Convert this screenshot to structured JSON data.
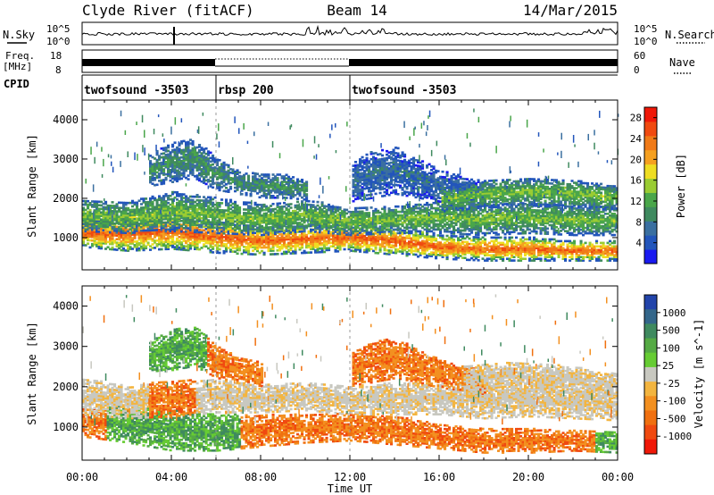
{
  "header": {
    "station": "Clyde River (fitACF)",
    "beam": "Beam 14",
    "date": "14/Mar/2015"
  },
  "strips": {
    "nsky": {
      "label": "N.Sky",
      "tick_top": "10^5",
      "tick_bottom": "10^0"
    },
    "nsearch": {
      "label": "N.Search",
      "tick_top": "10^5",
      "tick_bottom": "10^0"
    },
    "freq": {
      "label_line1": "Freq.",
      "label_line2": "[MHz]",
      "tick_top": "18",
      "tick_bottom": "8"
    },
    "nave": {
      "label": "Nave",
      "tick_top": "60",
      "tick_bottom": "0"
    },
    "cpid": {
      "label": "CPID"
    }
  },
  "colors": {
    "power": [
      "#1a1af0",
      "#2255bb",
      "#3a6fa0",
      "#3f8a5f",
      "#4aa64a",
      "#9acc33",
      "#eedd22",
      "#f5a020",
      "#f07a18",
      "#f04a10",
      "#f01808"
    ],
    "velocity": [
      "#2244aa",
      "#33668a",
      "#3f8a5f",
      "#55aa44",
      "#66cc33",
      "#c8c8c0",
      "#f3b540",
      "#f39020",
      "#f07010",
      "#f04a10",
      "#f01808"
    ]
  },
  "chart_data": [
    {
      "type": "table",
      "name": "CPID",
      "segments": [
        {
          "start_hour": 0,
          "end_hour": 6,
          "label": "twofsound -3503"
        },
        {
          "start_hour": 6,
          "end_hour": 12,
          "label": "rbsp 200"
        },
        {
          "start_hour": 12,
          "end_hour": 24,
          "label": "twofsound -3503"
        }
      ]
    },
    {
      "type": "heatmap",
      "name": "power",
      "xlabel": "Time UT",
      "ylabel": "Slant Range [km]",
      "xlim": [
        0,
        24
      ],
      "ylim": [
        180,
        4500
      ],
      "x_ticks": [
        "00:00",
        "04:00",
        "08:00",
        "12:00",
        "16:00",
        "20:00",
        "00:00"
      ],
      "y_ticks": [
        1000,
        2000,
        3000,
        4000
      ],
      "colorbar": {
        "label": "Power [dB]",
        "ticks": [
          4,
          8,
          12,
          16,
          20,
          24,
          28
        ],
        "range": [
          0,
          30
        ]
      },
      "bands": [
        {
          "hours": [
            0,
            2,
            4,
            6,
            8,
            10,
            12,
            14,
            16,
            18,
            20,
            22,
            24
          ],
          "center_km": [
            1100,
            1050,
            1150,
            1000,
            900,
            950,
            1000,
            900,
            750,
            700,
            700,
            650,
            650
          ],
          "width_km": [
            350,
            400,
            450,
            400,
            350,
            350,
            350,
            350,
            300,
            300,
            300,
            250,
            250
          ],
          "level": 26
        },
        {
          "hours": [
            0,
            2,
            4,
            6,
            8,
            10,
            12,
            14,
            16,
            18,
            20,
            22,
            24
          ],
          "center_km": [
            1550,
            1500,
            1650,
            1550,
            1450,
            1550,
            1400,
            1450,
            1500,
            1450,
            1500,
            1450,
            1400
          ],
          "width_km": [
            400,
            400,
            500,
            450,
            400,
            400,
            350,
            350,
            400,
            400,
            400,
            400,
            350
          ],
          "level": 14
        },
        {
          "hours": [
            3,
            4,
            5,
            6,
            7,
            8,
            9,
            10
          ],
          "center_km": [
            2700,
            2900,
            3000,
            2600,
            2400,
            2300,
            2300,
            2200
          ],
          "width_km": [
            400,
            500,
            500,
            400,
            300,
            300,
            300,
            250
          ],
          "level": 10
        },
        {
          "hours": [
            12,
            13,
            14,
            15,
            16,
            17,
            18
          ],
          "center_km": [
            2400,
            2600,
            2700,
            2500,
            2300,
            2200,
            2100
          ],
          "width_km": [
            500,
            600,
            600,
            500,
            400,
            350,
            300
          ],
          "level": 6
        },
        {
          "hours": [
            16,
            18,
            20,
            22,
            24
          ],
          "center_km": [
            1950,
            2100,
            2150,
            2100,
            2000
          ],
          "width_km": [
            300,
            350,
            350,
            350,
            300
          ],
          "level": 14
        }
      ]
    },
    {
      "type": "heatmap",
      "name": "velocity",
      "xlabel": "Time UT",
      "ylabel": "Slant Range [km]",
      "xlim": [
        0,
        24
      ],
      "ylim": [
        180,
        4500
      ],
      "x_ticks": [
        "00:00",
        "04:00",
        "08:00",
        "12:00",
        "16:00",
        "20:00",
        "00:00"
      ],
      "y_ticks": [
        1000,
        2000,
        3000,
        4000
      ],
      "colorbar": {
        "label": "Velocity [m s^-1]",
        "ticks": [
          "1000",
          "500",
          "100",
          "25",
          "-25",
          "-100",
          "-500",
          "-1000"
        ]
      },
      "bands": [
        {
          "hours": [
            0,
            2,
            4,
            6,
            8,
            10,
            12,
            14,
            16,
            18,
            20,
            22,
            24
          ],
          "center_km": [
            1100,
            1050,
            900,
            850,
            900,
            950,
            1000,
            900,
            750,
            650,
            650,
            650,
            600
          ],
          "width_km": [
            350,
            450,
            500,
            450,
            400,
            350,
            350,
            350,
            300,
            300,
            300,
            250,
            250
          ],
          "class": [
            "orange",
            "green",
            "green",
            "green",
            "orange",
            "orange",
            "orange",
            "orange",
            "orange",
            "orange",
            "orange",
            "orange",
            "green"
          ]
        },
        {
          "hours": [
            0,
            2,
            4,
            6,
            8,
            10,
            12,
            14,
            16,
            18,
            20,
            22,
            24
          ],
          "center_km": [
            1750,
            1600,
            1700,
            1750,
            1700,
            1750,
            1650,
            1700,
            1700,
            1650,
            1700,
            1650,
            1550
          ],
          "width_km": [
            450,
            400,
            450,
            400,
            350,
            350,
            350,
            400,
            400,
            450,
            450,
            450,
            400
          ],
          "class": [
            "grey",
            "grey",
            "orange",
            "grey",
            "grey",
            "grey",
            "grey",
            "grey",
            "grey",
            "grey",
            "grey",
            "grey",
            "grey"
          ]
        },
        {
          "hours": [
            3,
            4,
            5,
            6,
            7,
            8
          ],
          "center_km": [
            2700,
            2900,
            3000,
            2600,
            2400,
            2300
          ],
          "width_km": [
            400,
            500,
            500,
            400,
            300,
            300
          ],
          "class": [
            "green",
            "green",
            "green",
            "orange",
            "orange",
            "orange"
          ]
        },
        {
          "hours": [
            12,
            13,
            14,
            15,
            16,
            17,
            18
          ],
          "center_km": [
            2400,
            2600,
            2700,
            2500,
            2300,
            2200,
            2100
          ],
          "width_km": [
            400,
            500,
            500,
            400,
            350,
            300,
            300
          ],
          "class": [
            "orange",
            "orange",
            "orange",
            "orange",
            "orange",
            "orange",
            "orange"
          ]
        },
        {
          "hours": [
            17,
            19,
            21,
            23,
            24
          ],
          "center_km": [
            2150,
            2250,
            2200,
            2100,
            2000
          ],
          "width_km": [
            350,
            350,
            350,
            300,
            300
          ],
          "class": [
            "grey",
            "grey",
            "grey",
            "grey",
            "grey"
          ]
        }
      ]
    }
  ]
}
